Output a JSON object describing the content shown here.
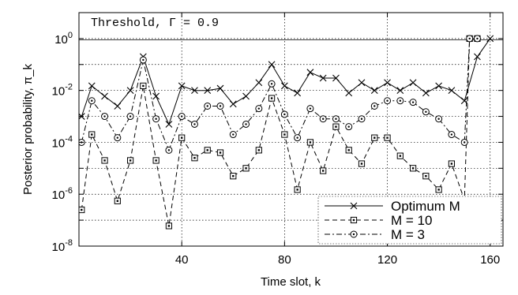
{
  "chart_data": {
    "type": "line",
    "xlabel": "Time slot, k",
    "ylabel": "Posterior probability, π_k",
    "xlim": [
      0,
      165
    ],
    "ylim_log10": [
      -8,
      1
    ],
    "log_y": true,
    "x_ticks": [
      40,
      80,
      120,
      160
    ],
    "y_tick_exponents": [
      -8,
      -6,
      -4,
      -2,
      0
    ],
    "y_tick_base": "10",
    "grid": "dotted",
    "legend_placement": "bottom-right",
    "annotation": {
      "text": "Threshold, Γ = 0.9",
      "value": 0.9
    },
    "series": [
      {
        "name": "Optimum M",
        "marker": "x",
        "dash": "solid",
        "x": [
          1,
          5,
          10,
          15,
          20,
          25,
          30,
          35,
          40,
          45,
          50,
          55,
          60,
          65,
          70,
          75,
          80,
          85,
          90,
          95,
          100,
          105,
          110,
          115,
          120,
          125,
          130,
          135,
          140,
          145,
          150,
          155,
          160
        ],
        "y": [
          0.001,
          0.015,
          0.006,
          0.0025,
          0.01,
          0.2,
          0.006,
          0.0005,
          0.015,
          0.01,
          0.01,
          0.012,
          0.003,
          0.006,
          0.02,
          0.1,
          0.015,
          0.008,
          0.05,
          0.03,
          0.03,
          0.008,
          0.02,
          0.01,
          0.02,
          0.01,
          0.02,
          0.008,
          0.015,
          0.01,
          0.004,
          0.2,
          1.0
        ]
      },
      {
        "name": "M = 10",
        "marker": "square",
        "dash": "dashed",
        "x": [
          1,
          5,
          10,
          15,
          20,
          25,
          30,
          35,
          40,
          45,
          50,
          55,
          60,
          65,
          70,
          75,
          80,
          85,
          90,
          95,
          100,
          105,
          110,
          115,
          120,
          125,
          130,
          135,
          140,
          145,
          150,
          152,
          155
        ],
        "y": [
          2.5e-07,
          0.0002,
          2e-05,
          5.5e-07,
          2e-05,
          0.015,
          2e-05,
          6e-08,
          0.00015,
          2.5e-05,
          5e-05,
          4e-05,
          5e-06,
          1e-05,
          5e-05,
          0.005,
          0.0002,
          1.5e-06,
          0.0001,
          8e-06,
          0.0004,
          5e-05,
          1.5e-05,
          0.00015,
          0.00015,
          3e-05,
          1e-05,
          5e-06,
          1.5e-06,
          1.5e-05,
          6e-07,
          1.0,
          1.0
        ]
      },
      {
        "name": "M = 3",
        "marker": "circle",
        "dash": "dashdot",
        "x": [
          1,
          5,
          10,
          15,
          20,
          25,
          30,
          35,
          40,
          45,
          50,
          55,
          60,
          65,
          70,
          75,
          80,
          85,
          90,
          95,
          100,
          105,
          110,
          115,
          120,
          125,
          130,
          135,
          140,
          145,
          150,
          152,
          155
        ],
        "y": [
          0.0001,
          0.004,
          0.001,
          0.00015,
          0.001,
          0.15,
          0.0008,
          5e-05,
          0.001,
          0.0005,
          0.0025,
          0.0025,
          0.0002,
          0.0005,
          0.002,
          0.018,
          0.0012,
          0.00015,
          0.002,
          0.0008,
          0.0008,
          0.0004,
          0.0008,
          0.0025,
          0.004,
          0.004,
          0.0035,
          0.0015,
          0.0008,
          0.0002,
          0.0001,
          1.0,
          1.0
        ]
      }
    ]
  }
}
